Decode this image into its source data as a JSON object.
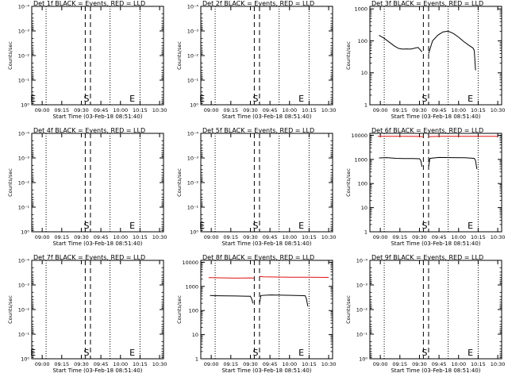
{
  "figure": {
    "background": "#ffffff",
    "colors": {
      "events": "#000000",
      "lld": "#e01010",
      "frame": "#000000",
      "gridlines": "#000000"
    }
  },
  "chart_data": [
    {
      "type": "line",
      "title": "Det 1f BLACK = Events, RED = LLD",
      "xlabel": "Start Time (03-Feb-18 08:51:40)",
      "ylabel": "Counts/sec",
      "x_ticks": [
        "09:00",
        "09:15",
        "09:30",
        "09:45",
        "10:00",
        "10:15",
        "10:30"
      ],
      "x_range": [
        "08:52",
        "10:33"
      ],
      "y_scale": "log",
      "y_ticks": [
        "10⁰",
        "10⁻¹",
        "10⁻²",
        "10⁻³",
        "10⁻⁴"
      ],
      "y_tick_values": [
        1,
        0.1,
        0.01,
        0.001,
        0.0001
      ],
      "ylim": [
        1,
        0.0001
      ],
      "dashed_verticals": [
        "09:33",
        "09:37"
      ],
      "dotted_verticals": [
        "09:03",
        "09:52",
        "10:15"
      ],
      "markers": [
        {
          "label": "E",
          "x": "08:53"
        },
        {
          "label": "S",
          "x": "09:34"
        },
        {
          "label": "E",
          "x": "10:09"
        }
      ],
      "series": []
    },
    {
      "type": "line",
      "title": "Det 2f BLACK = Events, RED = LLD",
      "xlabel": "Start Time (03-Feb-18 08:51:40)",
      "ylabel": "Counts/sec",
      "x_ticks": [
        "09:00",
        "09:15",
        "09:30",
        "09:45",
        "10:00",
        "10:15",
        "10:30"
      ],
      "x_range": [
        "08:52",
        "10:33"
      ],
      "y_scale": "log",
      "y_ticks": [
        "10⁰",
        "10⁻¹",
        "10⁻²",
        "10⁻³",
        "10⁻⁴"
      ],
      "y_tick_values": [
        1,
        0.1,
        0.01,
        0.001,
        0.0001
      ],
      "ylim": [
        1,
        0.0001
      ],
      "dashed_verticals": [
        "09:33",
        "09:37"
      ],
      "dotted_verticals": [
        "09:03",
        "09:52",
        "10:15"
      ],
      "markers": [
        {
          "label": "E",
          "x": "08:53"
        },
        {
          "label": "S",
          "x": "09:34"
        },
        {
          "label": "E",
          "x": "10:09"
        }
      ],
      "series": []
    },
    {
      "type": "line",
      "title": "Det 3f BLACK = Events, RED = LLD",
      "xlabel": "Start Time (03-Feb-18 08:51:40)",
      "ylabel": "Counts/sec",
      "x_ticks": [
        "09:00",
        "09:15",
        "09:30",
        "09:45",
        "10:00",
        "10:15",
        "10:30"
      ],
      "x_range": [
        "08:52",
        "10:33"
      ],
      "y_scale": "log",
      "y_ticks": [
        "1",
        "10",
        "100",
        "1000"
      ],
      "y_tick_values": [
        1,
        10,
        100,
        1000
      ],
      "ylim": [
        1,
        1200
      ],
      "dashed_verticals": [
        "09:33",
        "09:37"
      ],
      "dotted_verticals": [
        "09:03",
        "09:52",
        "10:15"
      ],
      "markers": [
        {
          "label": "S",
          "x": "09:34"
        },
        {
          "label": "E",
          "x": "10:09"
        }
      ],
      "series": [
        {
          "role": "events",
          "segments": [
            {
              "x": [
                "08:59",
                "09:03",
                "09:07",
                "09:11",
                "09:14",
                "09:17",
                "09:20",
                "09:23",
                "09:25",
                "09:27",
                "09:29",
                "09:31",
                "09:32"
              ],
              "y": [
                150,
                120,
                90,
                68,
                58,
                55,
                56,
                55,
                57,
                60,
                62,
                50,
                45
              ]
            },
            {
              "x": [
                "09:37",
                "09:40",
                "09:44",
                "09:48",
                "09:52",
                "09:56",
                "10:00",
                "10:04",
                "10:08",
                "10:11",
                "10:12",
                "10:13"
              ],
              "y": [
                40,
                100,
                150,
                190,
                200,
                170,
                130,
                95,
                72,
                60,
                50,
                12
              ]
            }
          ]
        }
      ]
    },
    {
      "type": "line",
      "title": "Det 4f BLACK = Events, RED = LLD",
      "xlabel": "Start Time (03-Feb-18 08:51:40)",
      "ylabel": "Counts/sec",
      "x_ticks": [
        "09:00",
        "09:15",
        "09:30",
        "09:45",
        "10:00",
        "10:15",
        "10:30"
      ],
      "x_range": [
        "08:52",
        "10:33"
      ],
      "y_scale": "log",
      "y_ticks": [
        "10⁰",
        "10⁻¹",
        "10⁻²",
        "10⁻³",
        "10⁻⁴"
      ],
      "y_tick_values": [
        1,
        0.1,
        0.01,
        0.001,
        0.0001
      ],
      "ylim": [
        1,
        0.0001
      ],
      "dashed_verticals": [
        "09:33",
        "09:37"
      ],
      "dotted_verticals": [
        "09:03",
        "09:52",
        "10:15"
      ],
      "markers": [
        {
          "label": "S",
          "x": "09:34"
        },
        {
          "label": "E",
          "x": "10:09"
        }
      ],
      "series": []
    },
    {
      "type": "line",
      "title": "Det 5f BLACK = Events, RED = LLD",
      "xlabel": "Start Time (03-Feb-18 08:51:40)",
      "ylabel": "Counts/sec",
      "x_ticks": [
        "09:00",
        "09:15",
        "09:30",
        "09:45",
        "10:00",
        "10:15",
        "10:30"
      ],
      "x_range": [
        "08:52",
        "10:33"
      ],
      "y_scale": "log",
      "y_ticks": [
        "10⁰",
        "10⁻¹",
        "10⁻²",
        "10⁻³",
        "10⁻⁴"
      ],
      "y_tick_values": [
        1,
        0.1,
        0.01,
        0.001,
        0.0001
      ],
      "ylim": [
        1,
        0.0001
      ],
      "dashed_verticals": [
        "09:33",
        "09:37"
      ],
      "dotted_verticals": [
        "09:03",
        "09:52",
        "10:15"
      ],
      "markers": [
        {
          "label": "E",
          "x": "08:53"
        },
        {
          "label": "S",
          "x": "09:34"
        },
        {
          "label": "E",
          "x": "10:09"
        }
      ],
      "series": []
    },
    {
      "type": "line",
      "title": "Det 6f BLACK = Events, RED = LLD",
      "xlabel": "Start Time (03-Feb-18 08:51:40)",
      "ylabel": "Counts/sec",
      "x_ticks": [
        "09:00",
        "09:15",
        "09:30",
        "09:45",
        "10:00",
        "10:15",
        "10:30"
      ],
      "x_range": [
        "08:52",
        "10:33"
      ],
      "y_scale": "log",
      "y_ticks": [
        "1",
        "10",
        "100",
        "1000",
        "10000"
      ],
      "y_tick_values": [
        1,
        10,
        100,
        1000,
        10000
      ],
      "ylim": [
        1,
        12000
      ],
      "dashed_verticals": [
        "09:33",
        "09:37"
      ],
      "dotted_verticals": [
        "09:03",
        "09:52",
        "10:15"
      ],
      "markers": [
        {
          "label": "S",
          "x": "09:34"
        },
        {
          "label": "E",
          "x": "10:09"
        }
      ],
      "series": [
        {
          "role": "lld",
          "segments": [
            {
              "x": [
                "08:58",
                "09:10",
                "09:20",
                "09:30",
                "09:33"
              ],
              "y": [
                9000,
                9100,
                9000,
                8900,
                8800
              ]
            },
            {
              "x": [
                "09:37",
                "09:45",
                "10:00",
                "10:15",
                "10:30"
              ],
              "y": [
                8800,
                9000,
                9100,
                9000,
                9000
              ]
            }
          ]
        },
        {
          "role": "events",
          "segments": [
            {
              "x": [
                "08:59",
                "09:05",
                "09:12",
                "09:19",
                "09:25",
                "09:30",
                "09:31",
                "09:32"
              ],
              "y": [
                1150,
                1180,
                1100,
                1080,
                1090,
                1060,
                900,
                500
              ]
            },
            {
              "x": [
                "09:37",
                "09:38",
                "09:45",
                "09:55",
                "10:05",
                "10:12",
                "10:13",
                "10:14"
              ],
              "y": [
                500,
                1100,
                1200,
                1180,
                1160,
                1100,
                900,
                400
              ]
            }
          ]
        }
      ]
    },
    {
      "type": "line",
      "title": "Det 7f BLACK = Events, RED = LLD",
      "xlabel": "Start Time (03-Feb-18 08:51:40)",
      "ylabel": "Counts/sec",
      "x_ticks": [
        "09:00",
        "09:15",
        "09:30",
        "09:45",
        "10:00",
        "10:15",
        "10:30"
      ],
      "x_range": [
        "08:52",
        "10:33"
      ],
      "y_scale": "log",
      "y_ticks": [
        "10⁰",
        "10⁻¹",
        "10⁻²",
        "10⁻³",
        "10⁻⁴"
      ],
      "y_tick_values": [
        1,
        0.1,
        0.01,
        0.001,
        0.0001
      ],
      "ylim": [
        1,
        0.0001
      ],
      "dashed_verticals": [
        "09:33",
        "09:37"
      ],
      "dotted_verticals": [
        "09:03",
        "09:52",
        "10:15"
      ],
      "markers": [
        {
          "label": "E",
          "x": "08:53"
        },
        {
          "label": "S",
          "x": "09:34"
        },
        {
          "label": "E",
          "x": "10:09"
        }
      ],
      "series": []
    },
    {
      "type": "line",
      "title": "Det 8f BLACK = Events, RED = LLD",
      "xlabel": "Start Time (03-Feb-18 08:51:40)",
      "ylabel": "Counts/sec",
      "x_ticks": [
        "09:00",
        "09:15",
        "09:30",
        "09:45",
        "10:00",
        "10:15",
        "10:30"
      ],
      "x_range": [
        "08:52",
        "10:33"
      ],
      "y_scale": "log",
      "y_ticks": [
        "1",
        "10",
        "100",
        "1000",
        "10000"
      ],
      "y_tick_values": [
        1,
        10,
        100,
        1000,
        10000
      ],
      "ylim": [
        1,
        12000
      ],
      "dashed_verticals": [
        "09:33",
        "09:37"
      ],
      "dotted_verticals": [
        "09:03",
        "09:52",
        "10:15"
      ],
      "markers": [
        {
          "label": "S",
          "x": "09:34"
        },
        {
          "label": "E",
          "x": "10:09"
        }
      ],
      "series": [
        {
          "role": "lld",
          "segments": [
            {
              "x": [
                "08:58",
                "09:10",
                "09:20",
                "09:30",
                "09:33"
              ],
              "y": [
                2300,
                2250,
                2200,
                2250,
                2200
              ]
            },
            {
              "x": [
                "09:37",
                "09:40",
                "09:50",
                "10:00",
                "10:15",
                "10:30"
              ],
              "y": [
                2600,
                2500,
                2450,
                2400,
                2400,
                2350
              ]
            }
          ]
        },
        {
          "role": "events",
          "segments": [
            {
              "x": [
                "08:59",
                "09:05",
                "09:12",
                "09:19",
                "09:25",
                "09:30",
                "09:31",
                "09:32"
              ],
              "y": [
                420,
                410,
                405,
                400,
                395,
                390,
                300,
                200
              ]
            },
            {
              "x": [
                "09:37",
                "09:38",
                "09:45",
                "09:55",
                "10:05",
                "10:12",
                "10:13",
                "10:14"
              ],
              "y": [
                200,
                420,
                440,
                430,
                420,
                410,
                300,
                150
              ]
            }
          ]
        }
      ]
    },
    {
      "type": "line",
      "title": "Det 9f BLACK = Events, RED = LLD",
      "xlabel": "Start Time (03-Feb-18 08:51:40)",
      "ylabel": "Counts/sec",
      "x_ticks": [
        "09:00",
        "09:15",
        "09:30",
        "09:45",
        "10:00",
        "10:15",
        "10:30"
      ],
      "x_range": [
        "08:52",
        "10:33"
      ],
      "y_scale": "log",
      "y_ticks": [
        "10⁰",
        "10⁻¹",
        "10⁻²",
        "10⁻³",
        "10⁻⁴"
      ],
      "y_tick_values": [
        1,
        0.1,
        0.01,
        0.001,
        0.0001
      ],
      "ylim": [
        1,
        0.0001
      ],
      "dashed_verticals": [
        "09:33",
        "09:37"
      ],
      "dotted_verticals": [
        "09:03",
        "09:52",
        "10:15"
      ],
      "markers": [
        {
          "label": "S",
          "x": "09:34"
        },
        {
          "label": "E",
          "x": "10:09"
        }
      ],
      "series": []
    }
  ]
}
